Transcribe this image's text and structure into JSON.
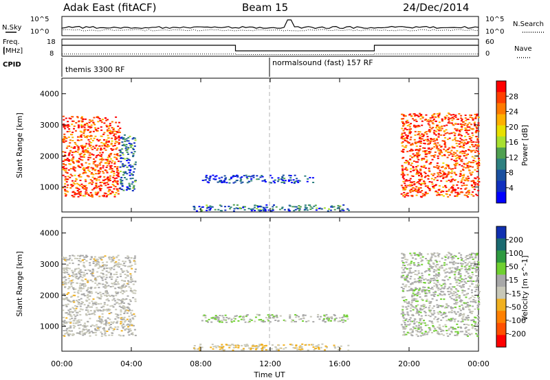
{
  "header": {
    "radar": "Adak East (fitACF)",
    "beam": "Beam 15",
    "date": "24/Dec/2014"
  },
  "panels": {
    "nsky_label": "N.Sky",
    "nsearch_label": "N.Search",
    "freq_label_1": "Freq.",
    "freq_label_2": "[MHz]",
    "nave_label": "Nave",
    "cpid_label": "CPID",
    "nsky_ticks": [
      "10^5",
      "10^0"
    ],
    "nsearch_ticks": [
      "10^5",
      "10^0"
    ],
    "freq_ticks": [
      "18",
      "8"
    ],
    "nave_ticks": [
      "60",
      "0"
    ],
    "cpid_modes": [
      {
        "label": "themis 3300 RF",
        "start": 0,
        "end": 12
      },
      {
        "label": "normalsound (fast) 157 RF",
        "start": 12,
        "end": 24
      }
    ]
  },
  "x_axis": {
    "title": "Time UT",
    "ticks": [
      "00:00",
      "04:00",
      "08:00",
      "12:00",
      "16:00",
      "20:00",
      "00:00"
    ]
  },
  "colorbars": {
    "power": {
      "title": "Power [dB]",
      "labels": [
        "28",
        "24",
        "20",
        "16",
        "12",
        "8",
        "4"
      ],
      "colors": [
        "#ff0000",
        "#ff4000",
        "#ff7a00",
        "#ffb000",
        "#e8e000",
        "#a8e030",
        "#4fa050",
        "#2e8080",
        "#1a50a0",
        "#1030c0",
        "#0000ff"
      ]
    },
    "velocity": {
      "title": "Velocity [m s^-1]",
      "labels": [
        "200",
        "100",
        "50",
        "15",
        "-15",
        "-50",
        "-100",
        "-200"
      ],
      "colors": [
        "#1030b0",
        "#1a6a70",
        "#2e9a40",
        "#6fd030",
        "#a8a8a8",
        "#c8c8b8",
        "#f0b020",
        "#ff8000",
        "#ff5000",
        "#ff0000"
      ]
    }
  },
  "chart_data": [
    {
      "type": "line",
      "name": "N.Sky / N.Search / Freq / Nave summary panels",
      "x_range_hours": [
        0,
        24
      ],
      "freq_mhz_series": {
        "x": [
          0,
          10,
          10,
          18,
          18,
          24
        ],
        "y": [
          14.5,
          14.5,
          11,
          11,
          14.5,
          14.5
        ]
      },
      "nave_series": {
        "x": [
          0,
          10,
          10,
          18,
          18,
          24
        ],
        "y": [
          6,
          6,
          4,
          4,
          6,
          6
        ]
      },
      "nave_range": [
        0,
        60
      ],
      "freq_range_mhz": [
        8,
        18
      ]
    },
    {
      "type": "heatmap",
      "quantity": "Power",
      "unit": "dB",
      "ylabel": "Slant Range [km]",
      "ylim": [
        200,
        4500
      ],
      "y_ticks": [
        "1000",
        "2000",
        "3000",
        "4000"
      ],
      "xlim_hours": [
        0,
        24
      ],
      "range": [
        0,
        30
      ],
      "regions": [
        {
          "t0": 0.0,
          "t1": 3.3,
          "r0": 700,
          "r1": 3300,
          "value": 26
        },
        {
          "t0": 3.3,
          "t1": 4.2,
          "r0": 900,
          "r1": 2700,
          "value": 8
        },
        {
          "t0": 8.0,
          "t1": 14.5,
          "r0": 1150,
          "r1": 1400,
          "value": 5
        },
        {
          "t0": 7.5,
          "t1": 16.5,
          "r0": 250,
          "r1": 450,
          "value": 8
        },
        {
          "t0": 19.5,
          "t1": 24.0,
          "r0": 700,
          "r1": 3400,
          "value": 26
        }
      ]
    },
    {
      "type": "heatmap",
      "quantity": "Velocity",
      "unit": "m s^-1",
      "ylabel": "Slant Range [km]",
      "ylim": [
        200,
        4500
      ],
      "y_ticks": [
        "1000",
        "2000",
        "3000",
        "4000"
      ],
      "xlim_hours": [
        0,
        24
      ],
      "range": [
        -250,
        250
      ],
      "regions": [
        {
          "t0": 0.0,
          "t1": 4.2,
          "r0": 700,
          "r1": 3300,
          "value": -10
        },
        {
          "t0": 8.0,
          "t1": 16.5,
          "r0": 1150,
          "r1": 1400,
          "value": 30
        },
        {
          "t0": 7.5,
          "t1": 16.5,
          "r0": 250,
          "r1": 450,
          "value": -50
        },
        {
          "t0": 19.5,
          "t1": 24.0,
          "r0": 700,
          "r1": 3400,
          "value": 20
        }
      ]
    }
  ]
}
